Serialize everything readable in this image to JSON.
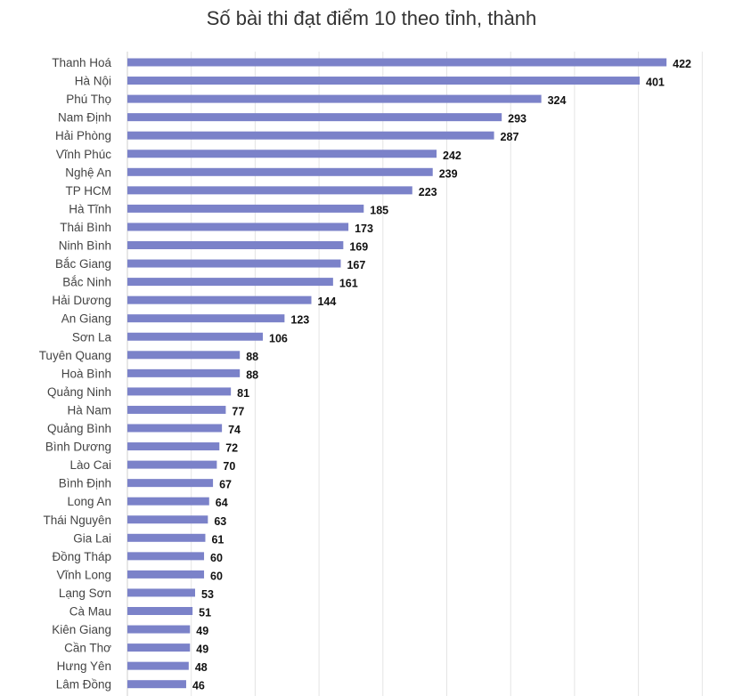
{
  "chart_data": {
    "type": "bar",
    "orientation": "horizontal",
    "title": "Số bài thi đạt điểm 10 theo tỉnh, thành",
    "xlabel": "",
    "ylabel": "",
    "xlim": [
      0,
      450
    ],
    "grid": true,
    "bar_color": "#7b82c9",
    "categories": [
      "Thanh Hoá",
      "Hà Nội",
      "Phú Thọ",
      "Nam Định",
      "Hải Phòng",
      "Vĩnh Phúc",
      "Nghệ An",
      "TP HCM",
      "Hà Tĩnh",
      "Thái Bình",
      "Ninh Bình",
      "Bắc Giang",
      "Bắc Ninh",
      "Hải Dương",
      "An Giang",
      "Sơn La",
      "Tuyên Quang",
      "Hoà Bình",
      "Quảng Ninh",
      "Hà Nam",
      "Quảng Bình",
      "Bình Dương",
      "Lào Cai",
      "Bình Định",
      "Long An",
      "Thái Nguyên",
      "Gia Lai",
      "Đồng Tháp",
      "Vĩnh Long",
      "Lạng Sơn",
      "Cà Mau",
      "Kiên Giang",
      "Cần Thơ",
      "Hưng Yên",
      "Lâm Đồng"
    ],
    "values": [
      422,
      401,
      324,
      293,
      287,
      242,
      239,
      223,
      185,
      173,
      169,
      167,
      161,
      144,
      123,
      106,
      88,
      88,
      81,
      77,
      74,
      72,
      70,
      67,
      64,
      63,
      61,
      60,
      60,
      53,
      51,
      49,
      49,
      48,
      46
    ]
  }
}
